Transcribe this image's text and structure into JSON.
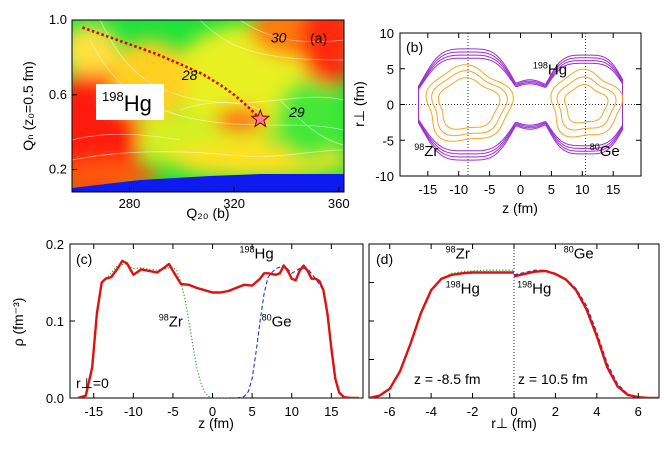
{
  "chart_data": [
    {
      "type": "heatmap",
      "panel_label": "(a)",
      "xlabel": "Q₂₀ (b)",
      "ylabel": "Qₙ (z₀=0.5 fm)",
      "xlim": [
        258,
        362
      ],
      "ylim": [
        0.08,
        1.0
      ],
      "xticks": [
        "280",
        "320",
        "360"
      ],
      "xtick_values": [
        280,
        320,
        360
      ],
      "yticks": [
        "0.2",
        "0.6",
        "1.0"
      ],
      "ytick_values": [
        0.2,
        0.6,
        1.0
      ],
      "nucleus_mass": "198",
      "nucleus_symbol": "Hg",
      "contour_labels": [
        {
          "text": "28",
          "x": 303,
          "y": 0.68
        },
        {
          "text": "30",
          "x": 337,
          "y": 0.88
        },
        {
          "text": "29",
          "x": 344,
          "y": 0.48
        }
      ],
      "fission_path": {
        "x": [
          262,
          270,
          280,
          290,
          300,
          308,
          315,
          320,
          325,
          330
        ],
        "y": [
          0.96,
          0.92,
          0.87,
          0.82,
          0.76,
          0.71,
          0.65,
          0.6,
          0.54,
          0.47
        ]
      },
      "star_point": {
        "x": 330,
        "y": 0.47
      },
      "colors": {
        "red": "#ff1a0a",
        "green": "#23e640",
        "blue": "#0d1af0",
        "path": "#e00000",
        "star": "#ff8080"
      }
    },
    {
      "type": "contour",
      "panel_label": "(b)",
      "xlabel": "z (fm)",
      "ylabel": "r⊥ (fm)",
      "xlim": [
        -19.5,
        19.5
      ],
      "ylim": [
        -10,
        10
      ],
      "xticks": [
        "-15",
        "-10",
        "-5",
        "0",
        "5",
        "10",
        "15"
      ],
      "xtick_values": [
        -15,
        -10,
        -5,
        0,
        5,
        10,
        15
      ],
      "yticks": [
        "-10",
        "-5",
        "0",
        "5",
        "10"
      ],
      "ytick_values": [
        -10,
        -5,
        0,
        5,
        10
      ],
      "dotted_vertical_lines": [
        -8.5,
        10.5
      ],
      "labels": [
        {
          "mass": "198",
          "symbol": "Hg",
          "z": 2,
          "r": 4.2
        },
        {
          "mass": "98",
          "symbol": "Zr",
          "z": -17.2,
          "r": -7.2
        },
        {
          "mass": "80",
          "symbol": "Ge",
          "z": 11.2,
          "r": -7.2
        }
      ],
      "colors": {
        "outer": "#9b2fd0",
        "inner": "#f5a623"
      }
    },
    {
      "type": "line",
      "panel_label": "(c)",
      "xlabel": "z (fm)",
      "ylabel": "ρ (fm⁻³)",
      "xlim": [
        -18,
        19
      ],
      "ylim": [
        0,
        0.2
      ],
      "xticks": [
        "-15",
        "-10",
        "-5",
        "0",
        "5",
        "10",
        "15"
      ],
      "xtick_values": [
        -15,
        -10,
        -5,
        0,
        5,
        10,
        15
      ],
      "yticks": [
        "0.0",
        "0.1",
        "0.2"
      ],
      "ytick_values": [
        0,
        0.1,
        0.2
      ],
      "annotation_rperp": "r⊥=0",
      "labels": [
        {
          "mass": "198",
          "symbol": "Hg",
          "x": 3.4,
          "y": 0.181
        },
        {
          "mass": "98",
          "symbol": "Zr",
          "x": -6.8,
          "y": 0.093
        },
        {
          "mass": "80",
          "symbol": "Ge",
          "x": 6.2,
          "y": 0.093
        }
      ],
      "series": [
        {
          "name": "198Hg",
          "color": "#e01010",
          "style": "solid",
          "x": [
            -17,
            -16,
            -15.2,
            -14.6,
            -14,
            -13.5,
            -12.8,
            -12,
            -11.4,
            -10.8,
            -10,
            -9,
            -8,
            -7,
            -6,
            -5.5,
            -5,
            -4,
            -3,
            -2,
            -1,
            0,
            1,
            2,
            3,
            4,
            5,
            6,
            6.5,
            7,
            8,
            8.5,
            9,
            9.5,
            10,
            10.5,
            11,
            11.5,
            12,
            12.5,
            13,
            13.5,
            14,
            14.5,
            15,
            15.5,
            16,
            16.6,
            17.5,
            18.5
          ],
          "y": [
            0.0,
            0.003,
            0.04,
            0.11,
            0.15,
            0.155,
            0.157,
            0.168,
            0.178,
            0.175,
            0.16,
            0.167,
            0.165,
            0.163,
            0.17,
            0.174,
            0.165,
            0.148,
            0.147,
            0.143,
            0.14,
            0.137,
            0.137,
            0.139,
            0.143,
            0.147,
            0.146,
            0.155,
            0.162,
            0.162,
            0.16,
            0.162,
            0.172,
            0.165,
            0.155,
            0.153,
            0.165,
            0.172,
            0.165,
            0.155,
            0.155,
            0.152,
            0.14,
            0.11,
            0.065,
            0.025,
            0.007,
            0.001,
            0.0,
            0.0
          ]
        },
        {
          "name": "98Zr",
          "color": "#209a20",
          "style": "dotted",
          "x": [
            -17,
            -16,
            -15.2,
            -14.6,
            -14,
            -13,
            -12,
            -11,
            -10,
            -9,
            -8,
            -7,
            -6,
            -5,
            -4.5,
            -4,
            -3.5,
            -3,
            -2.5,
            -2,
            -1.5,
            -1,
            -0.5,
            0,
            1,
            2
          ],
          "y": [
            0.0,
            0.003,
            0.04,
            0.11,
            0.15,
            0.16,
            0.172,
            0.174,
            0.168,
            0.169,
            0.167,
            0.166,
            0.168,
            0.17,
            0.165,
            0.15,
            0.13,
            0.1,
            0.07,
            0.04,
            0.02,
            0.008,
            0.002,
            0.0,
            0.0,
            0.0
          ]
        },
        {
          "name": "80Ge",
          "color": "#2030d8",
          "style": "dashed",
          "x": [
            3,
            4,
            4.5,
            5,
            5.5,
            6,
            6.5,
            7,
            7.5,
            8,
            8.5,
            9,
            10,
            11,
            12,
            13,
            14,
            14.5,
            15,
            15.5,
            16,
            16.6,
            17.5
          ],
          "y": [
            0.0,
            0.002,
            0.008,
            0.025,
            0.06,
            0.1,
            0.135,
            0.157,
            0.163,
            0.168,
            0.17,
            0.173,
            0.162,
            0.168,
            0.168,
            0.155,
            0.14,
            0.11,
            0.065,
            0.025,
            0.007,
            0.001,
            0.0
          ]
        }
      ]
    },
    {
      "type": "line",
      "panel_label": "(d)",
      "xlabel": "r⊥ (fm)",
      "ylabel": "",
      "xlim": [
        -7,
        7
      ],
      "ylim": [
        0,
        0.2
      ],
      "xticks": [
        "-6",
        "-4",
        "-2",
        "0",
        "2",
        "4",
        "6"
      ],
      "xtick_values": [
        -6,
        -4,
        -2,
        0,
        2,
        4,
        6
      ],
      "yticks": [],
      "dotted_vertical_line": 0,
      "z_left": "z = -8.5 fm",
      "z_right": "z = 10.5 fm",
      "labels": [
        {
          "mass": "98",
          "symbol": "Zr",
          "x": -3.3,
          "y": 0.181
        },
        {
          "mass": "198",
          "symbol": "Hg",
          "x": -3.3,
          "y": 0.136
        },
        {
          "mass": "80",
          "symbol": "Ge",
          "x": 2.4,
          "y": 0.181
        },
        {
          "mass": "198",
          "symbol": "Hg",
          "x": 0.15,
          "y": 0.136
        }
      ],
      "series": [
        {
          "name": "98Zr (z=-8.5)",
          "color": "#209a20",
          "style": "dotted",
          "x": [
            -7,
            -6.5,
            -6,
            -5.5,
            -5,
            -4.5,
            -4,
            -3.5,
            -3,
            -2.5,
            -2,
            -1.5,
            -1,
            -0.5,
            0
          ],
          "y": [
            0.0,
            0.003,
            0.012,
            0.035,
            0.07,
            0.11,
            0.14,
            0.155,
            0.162,
            0.164,
            0.165,
            0.166,
            0.166,
            0.166,
            0.166
          ]
        },
        {
          "name": "198Hg (z=-8.5)",
          "color": "#e01010",
          "style": "solid",
          "x": [
            -7,
            -6.5,
            -6,
            -5.5,
            -5,
            -4.5,
            -4,
            -3.5,
            -3,
            -2.5,
            -2,
            -1.5,
            -1,
            -0.5,
            0
          ],
          "y": [
            0.0,
            0.003,
            0.012,
            0.035,
            0.07,
            0.11,
            0.14,
            0.155,
            0.16,
            0.162,
            0.163,
            0.163,
            0.163,
            0.163,
            0.163
          ]
        },
        {
          "name": "80Ge (z=10.5)",
          "color": "#2030d8",
          "style": "dashed",
          "x": [
            0,
            0.5,
            1,
            1.5,
            2,
            2.5,
            3,
            3.5,
            4,
            4.5,
            5,
            5.5,
            6,
            6.5,
            7
          ],
          "y": [
            0.16,
            0.163,
            0.166,
            0.166,
            0.162,
            0.155,
            0.142,
            0.12,
            0.085,
            0.045,
            0.018,
            0.005,
            0.001,
            0.0,
            0.0
          ]
        },
        {
          "name": "198Hg (z=10.5)",
          "color": "#e01010",
          "style": "solid",
          "x": [
            0,
            0.5,
            1,
            1.5,
            2,
            2.5,
            3,
            3.5,
            4,
            4.5,
            5,
            5.5,
            6,
            6.5,
            7
          ],
          "y": [
            0.158,
            0.161,
            0.164,
            0.165,
            0.161,
            0.154,
            0.14,
            0.115,
            0.08,
            0.04,
            0.015,
            0.004,
            0.001,
            0.0,
            0.0
          ]
        }
      ]
    }
  ]
}
